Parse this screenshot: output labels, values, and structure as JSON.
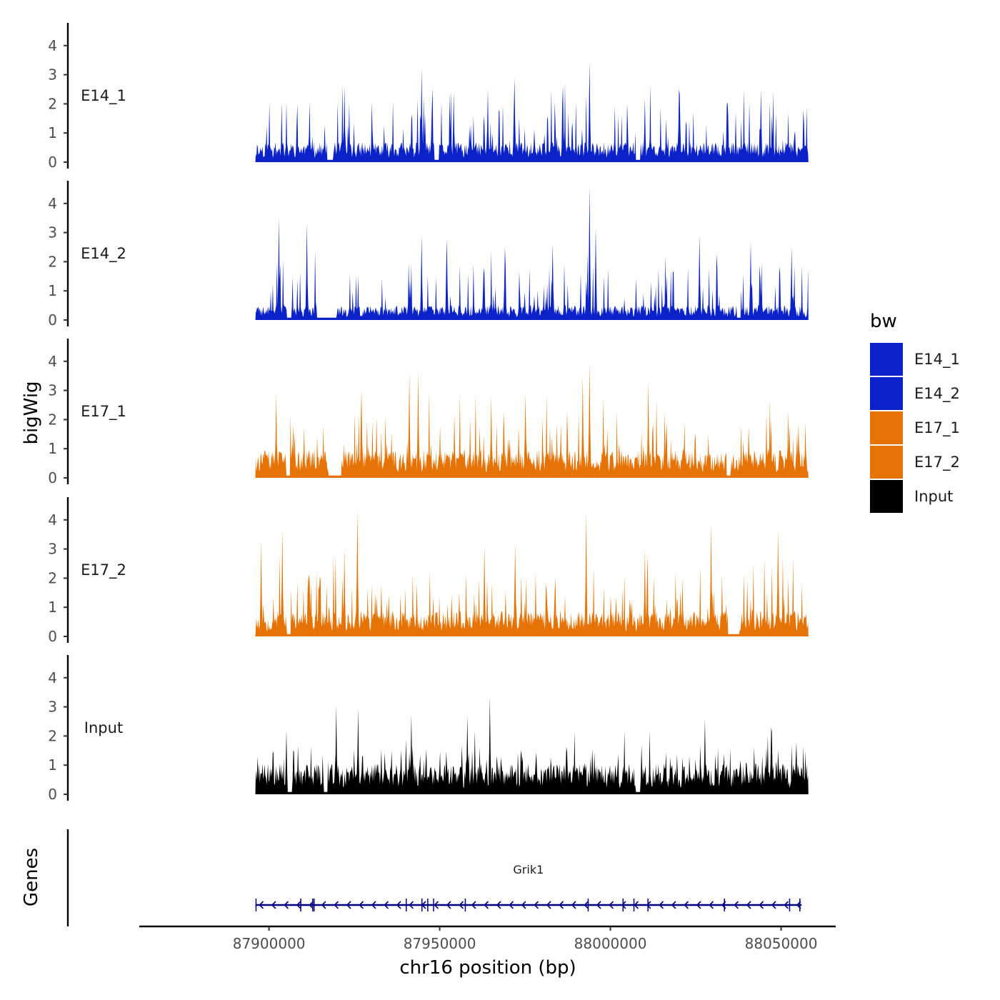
{
  "chart_data": {
    "type": "area",
    "region": {
      "chrom": "chr16",
      "start": 87896000,
      "end": 88058000
    },
    "xlabel": "chr16 position (bp)",
    "x_ticks": [
      "87900000",
      "87950000",
      "88000000",
      "88050000"
    ],
    "x_tick_values": [
      87900000,
      87950000,
      88000000,
      88050000
    ],
    "xlim": [
      87862000,
      88066000
    ],
    "ylabel": "bigWig",
    "ylim": [
      0,
      4.8
    ],
    "y_ticks": [
      "0",
      "1",
      "2",
      "3",
      "4"
    ],
    "genes_label": "Genes",
    "legend": {
      "title": "bw",
      "position": "right",
      "entries": [
        {
          "label": "E14_1",
          "color": "#0a22c8"
        },
        {
          "label": "E14_2",
          "color": "#0a22c8"
        },
        {
          "label": "E17_1",
          "color": "#e67305"
        },
        {
          "label": "E17_2",
          "color": "#e67305"
        },
        {
          "label": "Input",
          "color": "#000000"
        }
      ]
    },
    "series": [
      {
        "name": "E14_1",
        "color": "#0a22c8",
        "seed": 11,
        "base": 0.55,
        "mean_peak": 1.25,
        "bin_bp": 200,
        "peaks": [
          {
            "pos": 87944500,
            "value": 3.2
          },
          {
            "pos": 87993700,
            "value": 3.45
          },
          {
            "pos": 87922000,
            "value": 2.6
          },
          {
            "pos": 87971800,
            "value": 2.9
          },
          {
            "pos": 87964000,
            "value": 2.5
          },
          {
            "pos": 87986000,
            "value": 2.6
          },
          {
            "pos": 88020000,
            "value": 2.5
          },
          {
            "pos": 88044000,
            "value": 2.5
          },
          {
            "pos": 87954000,
            "value": 2.4
          },
          {
            "pos": 88010000,
            "value": 2.2
          }
        ],
        "gaps": [
          [
            87917000,
            87918500
          ],
          [
            87948500,
            87949500
          ],
          [
            88007500,
            88008500
          ]
        ]
      },
      {
        "name": "E14_2",
        "color": "#0a22c8",
        "seed": 23,
        "base": 0.4,
        "mean_peak": 1.15,
        "bin_bp": 200,
        "peaks": [
          {
            "pos": 87902800,
            "value": 3.5
          },
          {
            "pos": 87911000,
            "value": 3.35
          },
          {
            "pos": 87944500,
            "value": 2.9
          },
          {
            "pos": 87993700,
            "value": 4.6
          },
          {
            "pos": 87995500,
            "value": 3.2
          },
          {
            "pos": 87952000,
            "value": 2.8
          },
          {
            "pos": 88026000,
            "value": 2.9
          },
          {
            "pos": 88041000,
            "value": 2.7
          },
          {
            "pos": 87969000,
            "value": 2.5
          },
          {
            "pos": 87983000,
            "value": 2.6
          }
        ],
        "gaps": [
          [
            87905300,
            87906300
          ],
          [
            87914000,
            87919500
          ],
          [
            88037000,
            88038000
          ]
        ]
      },
      {
        "name": "E17_1",
        "color": "#e67305",
        "seed": 37,
        "base": 0.75,
        "mean_peak": 1.35,
        "bin_bp": 200,
        "peaks": [
          {
            "pos": 87941000,
            "value": 3.6
          },
          {
            "pos": 87943500,
            "value": 3.65
          },
          {
            "pos": 87991700,
            "value": 3.5
          },
          {
            "pos": 87993700,
            "value": 3.95
          },
          {
            "pos": 88011000,
            "value": 3.3
          },
          {
            "pos": 87902000,
            "value": 2.9
          },
          {
            "pos": 87975000,
            "value": 2.9
          },
          {
            "pos": 87965000,
            "value": 2.8
          },
          {
            "pos": 88052000,
            "value": 2.3
          },
          {
            "pos": 87927000,
            "value": 3.0
          }
        ],
        "gaps": [
          [
            87905000,
            87906000
          ],
          [
            87917500,
            87921000
          ],
          [
            88034000,
            88035000
          ]
        ]
      },
      {
        "name": "E17_2",
        "color": "#e67305",
        "seed": 53,
        "base": 0.7,
        "mean_peak": 1.3,
        "bin_bp": 200,
        "peaks": [
          {
            "pos": 87925800,
            "value": 4.35
          },
          {
            "pos": 87992800,
            "value": 4.25
          },
          {
            "pos": 88029300,
            "value": 3.9
          },
          {
            "pos": 88049000,
            "value": 3.65
          },
          {
            "pos": 87903800,
            "value": 3.7
          },
          {
            "pos": 87963000,
            "value": 3.1
          },
          {
            "pos": 87972000,
            "value": 3.2
          },
          {
            "pos": 87922000,
            "value": 3.0
          },
          {
            "pos": 88010000,
            "value": 3.0
          },
          {
            "pos": 87897500,
            "value": 3.3
          }
        ],
        "gaps": [
          [
            87905200,
            87906200
          ],
          [
            88034500,
            88037500
          ]
        ]
      },
      {
        "name": "Input",
        "color": "#000000",
        "seed": 71,
        "base": 0.85,
        "mean_peak": 1.0,
        "bin_bp": 200,
        "peaks": [
          {
            "pos": 87964500,
            "value": 3.35
          },
          {
            "pos": 87919500,
            "value": 3.05
          },
          {
            "pos": 87926000,
            "value": 2.95
          },
          {
            "pos": 87941500,
            "value": 2.75
          },
          {
            "pos": 87958000,
            "value": 2.7
          },
          {
            "pos": 88027500,
            "value": 2.6
          },
          {
            "pos": 88047000,
            "value": 2.3
          },
          {
            "pos": 87905000,
            "value": 2.2
          }
        ],
        "gaps": [
          [
            87905500,
            87906500
          ],
          [
            87916000,
            87917000
          ],
          [
            88007500,
            88008500
          ]
        ]
      }
    ],
    "genes": [
      {
        "name": "Grik1",
        "start": 87896000,
        "end": 88056000,
        "strand": "-",
        "color": "#00007f",
        "exons": [
          87896200,
          87909300,
          87912800,
          87913200,
          87940200,
          87944800,
          87946500,
          87948200,
          87957500,
          87993500,
          88003700,
          88006900,
          88011000,
          88033400,
          88052500,
          88055500
        ]
      }
    ]
  }
}
